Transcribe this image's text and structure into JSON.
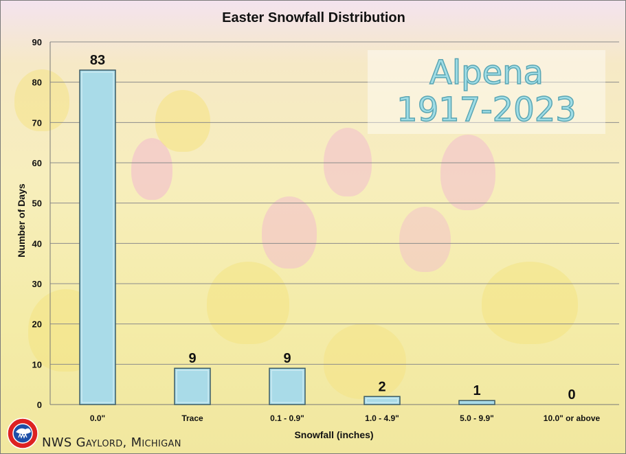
{
  "chart_data": {
    "type": "bar",
    "title": "Easter Snowfall Distribution",
    "xlabel": "Snowfall (inches)",
    "ylabel": "Number of Days",
    "categories": [
      "0.0\"",
      "Trace",
      "0.1 - 0.9\"",
      "1.0 - 4.9\"",
      "5.0 - 9.9\"",
      "10.0\" or above"
    ],
    "values": [
      83,
      9,
      9,
      2,
      1,
      0
    ],
    "ylim": [
      0,
      90
    ],
    "yticks": [
      0,
      10,
      20,
      30,
      40,
      50,
      60,
      70,
      80,
      90
    ],
    "grid": true,
    "bar_color": "#a9dbe8",
    "bar_edge_color": "#3a5a66",
    "data_labels": true
  },
  "overlay": {
    "line1": "Alpena",
    "line2": "1917-2023"
  },
  "footer": {
    "org": "NWS Gaylord, Michigan"
  },
  "colors": {
    "overlay_text": "#9fdde6",
    "gridline": "#8a8a8a"
  }
}
